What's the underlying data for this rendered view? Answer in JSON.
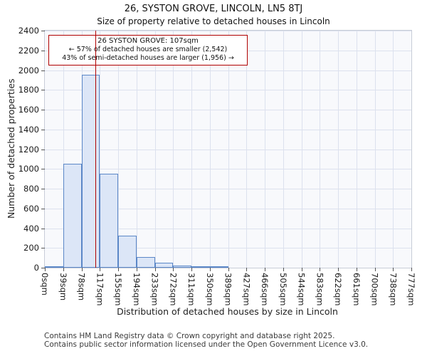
{
  "chart_data": {
    "type": "bar",
    "title": "26, SYSTON GROVE, LINCOLN, LN5 8TJ",
    "subtitle": "Size of property relative to detached houses in Lincoln",
    "xlabel": "Distribution of detached houses by size in Lincoln",
    "ylabel": "Number of detached properties",
    "categories": [
      "0sqm",
      "39sqm",
      "78sqm",
      "117sqm",
      "155sqm",
      "194sqm",
      "233sqm",
      "272sqm",
      "311sqm",
      "350sqm",
      "389sqm",
      "427sqm",
      "466sqm",
      "505sqm",
      "544sqm",
      "583sqm",
      "622sqm",
      "661sqm",
      "700sqm",
      "738sqm",
      "777sqm"
    ],
    "values": [
      8,
      1050,
      1950,
      950,
      325,
      110,
      50,
      20,
      12,
      8,
      0,
      0,
      0,
      0,
      0,
      0,
      0,
      0,
      0,
      0
    ],
    "xlim": [
      0,
      777
    ],
    "ylim": [
      0,
      2400
    ],
    "yticks": [
      0,
      200,
      400,
      600,
      800,
      1000,
      1200,
      1400,
      1600,
      1800,
      2000,
      2200,
      2400
    ],
    "grid": true,
    "legend": null,
    "marker": {
      "value": 107,
      "label": "26 SYSTON GROVE: 107sqm"
    },
    "annotation": {
      "lines": [
        "26 SYSTON GROVE: 107sqm",
        "← 57% of detached houses are smaller (2,542)",
        "43% of semi-detached houses are larger (1,956) →"
      ]
    },
    "colors": {
      "bar_fill": "#dce6f7",
      "bar_border": "#5b87c7",
      "marker_line": "#b00000",
      "annotation_border": "#b00000",
      "grid": "#dce1ee",
      "plot_bg": "#f8f9fc"
    }
  },
  "footer": {
    "lines": [
      "Contains HM Land Registry data © Crown copyright and database right 2025.",
      "Contains public sector information licensed under the Open Government Licence v3.0."
    ]
  }
}
